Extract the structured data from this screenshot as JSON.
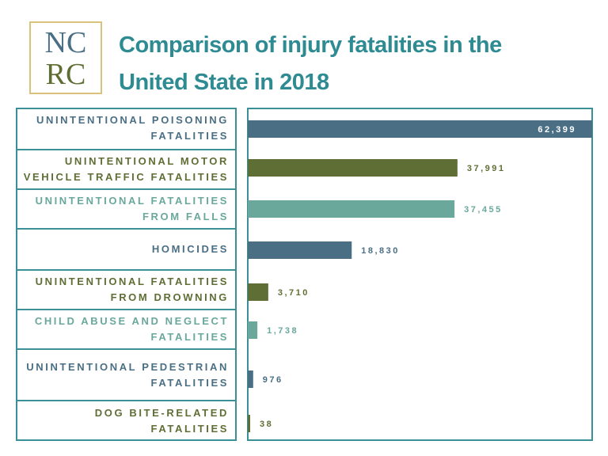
{
  "logo": {
    "line1": "NC",
    "line2": "RC"
  },
  "title_line1": "Comparison of injury fatalities in the",
  "title_line2": "United State in 2018",
  "chart_data": {
    "type": "bar",
    "orientation": "horizontal",
    "categories": [
      "UNINTENTIONAL POISONING FATALITIES",
      "UNINTENTIONAL MOTOR VEHICLE TRAFFIC FATALITIES",
      "UNINTENTIONAL FATALITIES FROM FALLS",
      "HOMICIDES",
      "UNINTENTIONAL FATALITIES FROM DROWNING",
      "CHILD ABUSE AND NEGLECT FATALITIES",
      "UNINTENTIONAL PEDESTRIAN FATALITIES",
      "DOG BITE-RELATED FATALITIES"
    ],
    "values": [
      62399,
      37991,
      37455,
      18830,
      3710,
      1738,
      976,
      38
    ],
    "labels": [
      "62,399",
      "37,991",
      "37,455",
      "18,830",
      "3,710",
      "1,738",
      "976",
      "38"
    ],
    "colors": [
      "#4a6f85",
      "#5f6e34",
      "#6aa89c",
      "#4a6f85",
      "#5f6e34",
      "#6aa89c",
      "#4a6f85",
      "#5f6e34"
    ],
    "xlim": [
      0,
      62399
    ]
  }
}
